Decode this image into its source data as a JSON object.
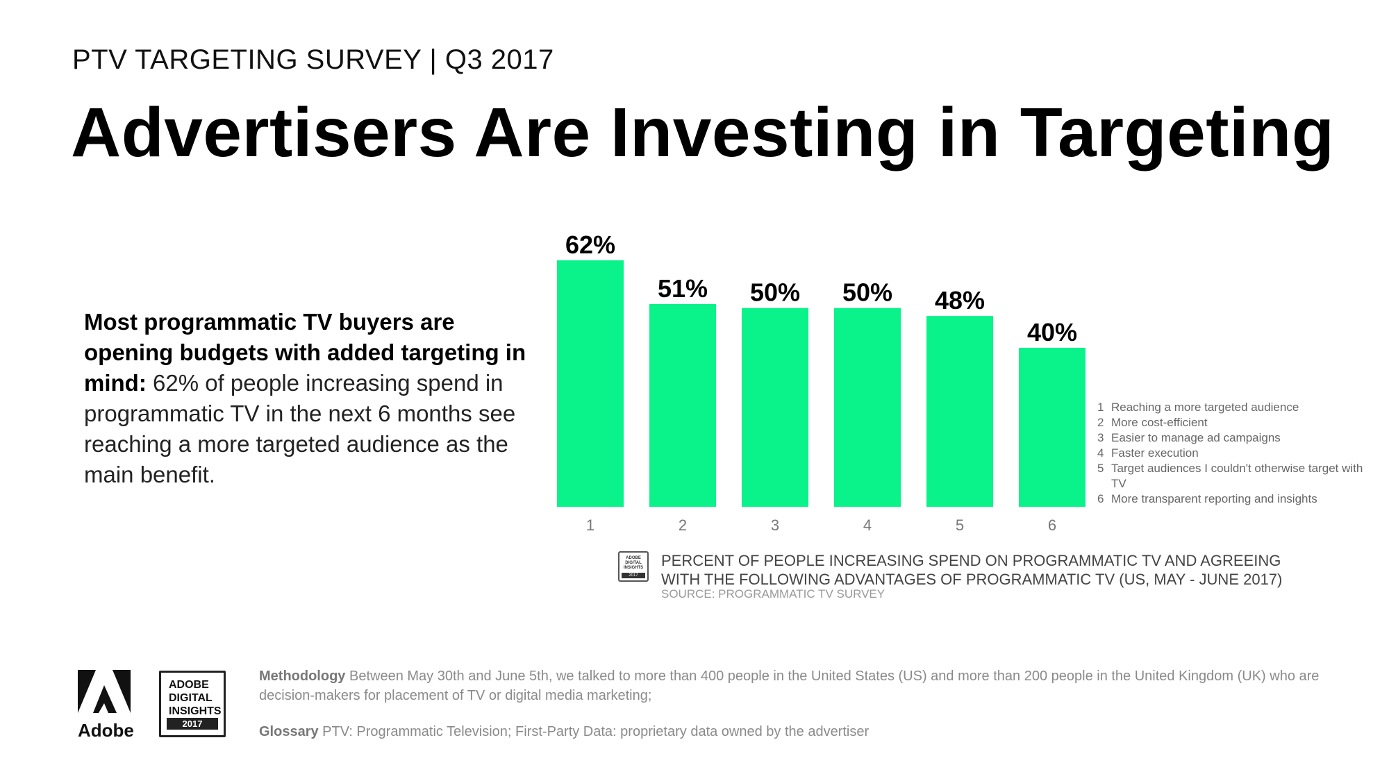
{
  "header": {
    "survey_line": "PTV TARGETING SURVEY | Q3 2017",
    "title": "Advertisers Are Investing in Targeting"
  },
  "lead": {
    "bold": "Most programmatic TV buyers are opening budgets with added targeting in mind:",
    "text": " 62% of people increasing spend in programmatic TV in the next 6 months see reaching a more targeted audience as the main benefit."
  },
  "chart_data": {
    "type": "bar",
    "categories": [
      "1",
      "2",
      "3",
      "4",
      "5",
      "6"
    ],
    "values": [
      62,
      51,
      50,
      50,
      48,
      40
    ],
    "data_labels": [
      "62%",
      "51%",
      "50%",
      "50%",
      "48%",
      "40%"
    ],
    "ylim": [
      0,
      62
    ],
    "bar_color": "#0af28a",
    "grid": false,
    "title": "",
    "xlabel": "",
    "ylabel": "",
    "legend_position": "right",
    "legend": [
      {
        "num": "1",
        "text": "Reaching a more targeted audience"
      },
      {
        "num": "2",
        "text": "More cost-efficient"
      },
      {
        "num": "3",
        "text": "Easier to manage ad campaigns"
      },
      {
        "num": "4",
        "text": "Faster execution"
      },
      {
        "num": "5",
        "text": "Target audiences I couldn't otherwise target with TV"
      },
      {
        "num": "6",
        "text": "More transparent reporting and insights"
      }
    ]
  },
  "caption": {
    "text": "PERCENT OF PEOPLE INCREASING SPEND ON PROGRAMMATIC TV AND AGREEING WITH THE FOLLOWING ADVANTAGES OF PROGRAMMATIC TV (US, MAY - JUNE 2017)",
    "source": "SOURCE: PROGRAMMATIC TV SURVEY",
    "icon_name": "adobe-digital-insights-icon",
    "icon_lines": "ADOBE DIGITAL INSIGHTS",
    "icon_year": "2017"
  },
  "footer": {
    "adobe_label": "Adobe",
    "badge_line1": "ADOBE",
    "badge_line2": "DIGITAL",
    "badge_line3": "INSIGHTS",
    "badge_year": "2017",
    "methodology_label": "Methodology",
    "methodology_text": " Between May 30th and June 5th, we talked to more than 400 people in the United States (US) and more than 200 people in the United Kingdom (UK) who are decision-makers for placement of TV or digital media marketing;",
    "glossary_label": "Glossary",
    "glossary_text": " PTV: Programmatic Television; First-Party Data: proprietary data owned by the advertiser"
  }
}
